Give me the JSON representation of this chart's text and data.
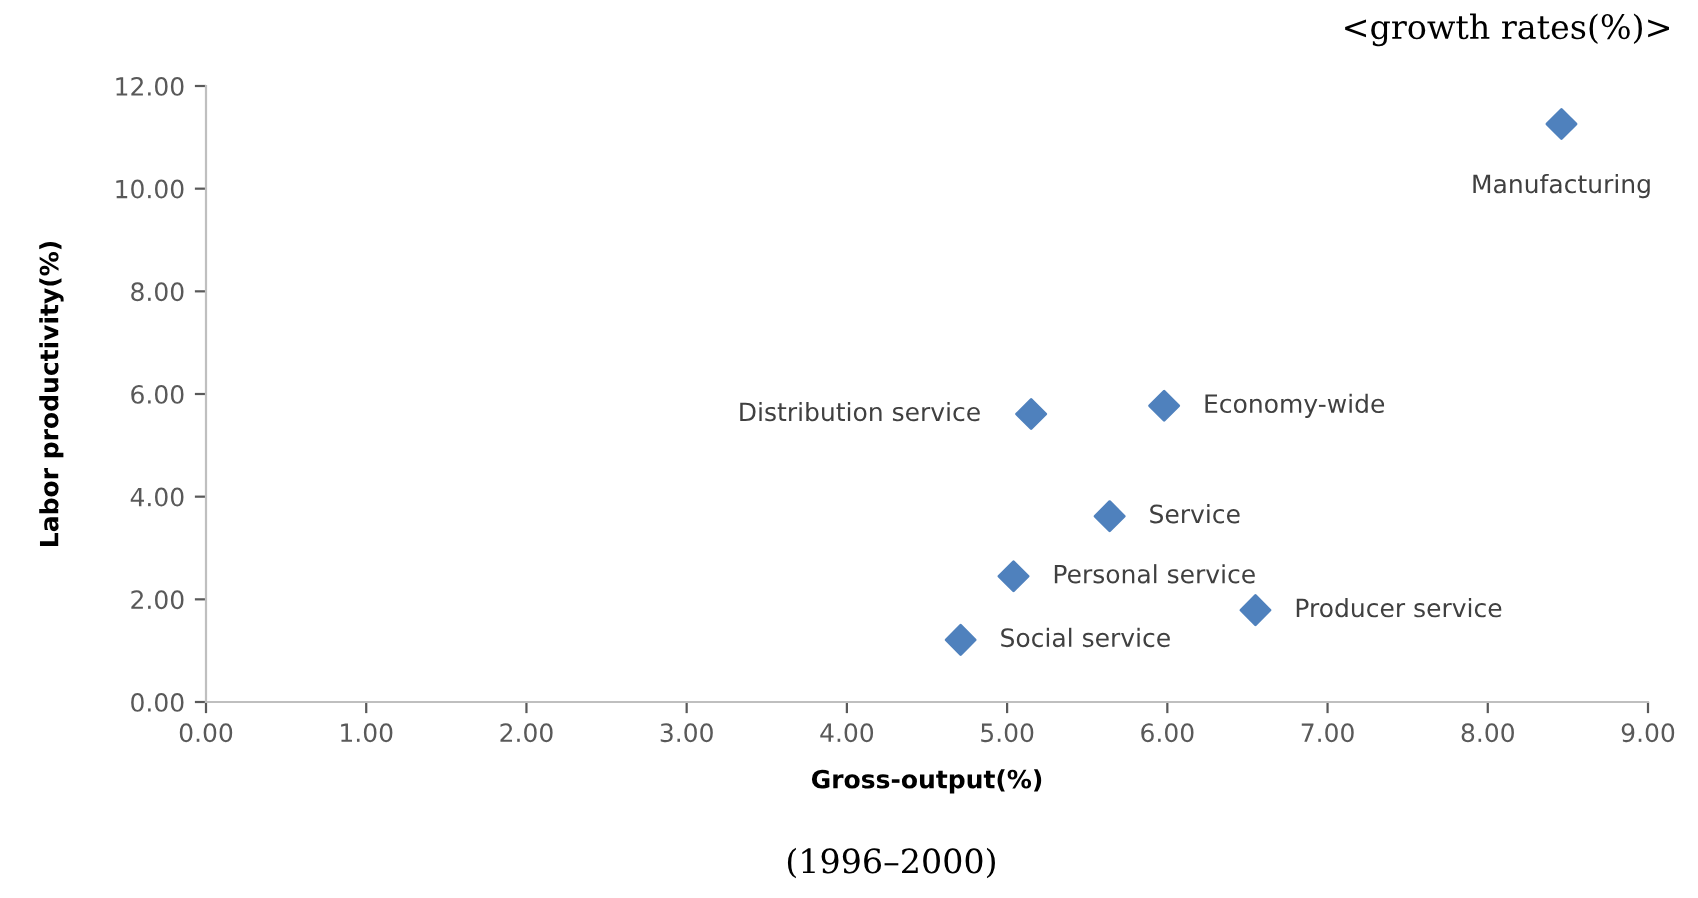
{
  "chart_data": {
    "type": "scatter",
    "title": "<growth rates(%)>",
    "subtitle": "(1996–2000)",
    "xlabel": "Gross-output(%)",
    "ylabel": "Labor productivity(%)",
    "x": [
      8.46,
      5.15,
      5.98,
      5.64,
      5.04,
      6.55,
      4.71
    ],
    "series": [
      {
        "color": "#4f81bd",
        "values": [
          11.26,
          5.61,
          5.77,
          3.62,
          2.45,
          1.79,
          1.21
        ]
      }
    ],
    "annotations": [
      {
        "text": "Manufacturing",
        "x": 8.46,
        "y": 11.26
      },
      {
        "text": "Distribution service",
        "x": 5.15,
        "y": 5.61
      },
      {
        "text": "Economy-wide",
        "x": 5.98,
        "y": 5.77
      },
      {
        "text": "Service",
        "x": 5.64,
        "y": 3.62
      },
      {
        "text": "Personal service",
        "x": 5.04,
        "y": 2.45
      },
      {
        "text": "Producer service",
        "x": 6.55,
        "y": 1.79
      },
      {
        "text": "Social service",
        "x": 4.71,
        "y": 1.21
      }
    ],
    "xlim": [
      0,
      9
    ],
    "xticks": [
      {
        "value": 0,
        "label": "0.00"
      },
      {
        "value": 1,
        "label": "1.00"
      },
      {
        "value": 2,
        "label": "2.00"
      },
      {
        "value": 3,
        "label": "3.00"
      },
      {
        "value": 4,
        "label": "4.00"
      },
      {
        "value": 5,
        "label": "5.00"
      },
      {
        "value": 6,
        "label": "6.00"
      },
      {
        "value": 7,
        "label": "7.00"
      },
      {
        "value": 8,
        "label": "8.00"
      },
      {
        "value": 9,
        "label": "9.00"
      }
    ],
    "ylim": [
      0,
      12
    ],
    "yticks": [
      {
        "value": 0,
        "label": "0.00"
      },
      {
        "value": 2,
        "label": "2.00"
      },
      {
        "value": 4,
        "label": "4.00"
      },
      {
        "value": 6,
        "label": "6.00"
      },
      {
        "value": 8,
        "label": "8.00"
      },
      {
        "value": 10,
        "label": "10.00"
      },
      {
        "value": 12,
        "label": "12.00"
      }
    ],
    "marker": "diamond",
    "grid": false,
    "legend": false
  }
}
